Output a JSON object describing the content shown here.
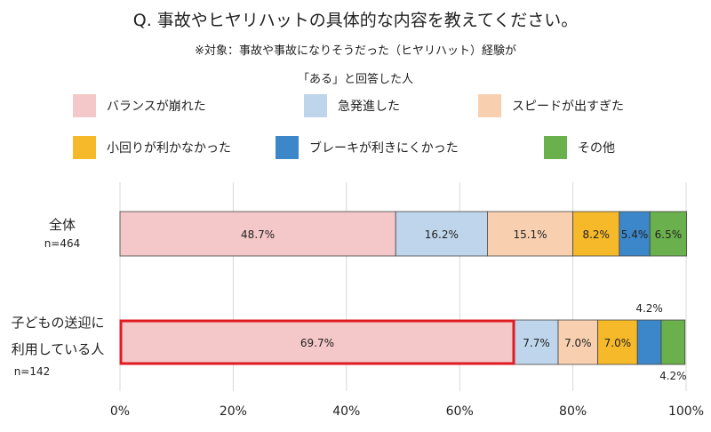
{
  "title": "Q. 事故やヒヤリハットの具体的な内容を教えてください。",
  "subtitle_line1": "※対象：事故や事故になりそうだった（ヒヤリハット）経験が",
  "subtitle_line2": "「ある」と回答した人",
  "chart_data": {
    "type": "bar",
    "orientation": "horizontal",
    "stacked": true,
    "xlim": [
      0,
      100
    ],
    "x_ticks": [
      "0%",
      "20%",
      "40%",
      "60%",
      "80%",
      "100%"
    ],
    "grid": true,
    "legend_position": "top",
    "categories": [
      {
        "label_lines": [
          "全体"
        ],
        "n": "n=464",
        "highlight_series": null
      },
      {
        "label_lines": [
          "子どもの送迎に",
          "利用している人"
        ],
        "n": "n=142",
        "highlight_series": 0
      }
    ],
    "series": [
      {
        "name": "バランスが崩れた",
        "color": "#f4c7c8",
        "values": [
          48.7,
          69.7
        ],
        "labels": [
          "48.7%",
          "69.7%"
        ]
      },
      {
        "name": "急発進した",
        "color": "#bed5ec",
        "values": [
          16.2,
          7.7
        ],
        "labels": [
          "16.2%",
          "7.7%"
        ]
      },
      {
        "name": "スピードが出すぎた",
        "color": "#f8d0b0",
        "values": [
          15.1,
          7.0
        ],
        "labels": [
          "15.1%",
          "7.0%"
        ]
      },
      {
        "name": "小回りが利かなかった",
        "color": "#f5b92a",
        "values": [
          8.2,
          7.0
        ],
        "labels": [
          "8.2%",
          "7.0%"
        ]
      },
      {
        "name": "ブレーキが利きにくかった",
        "color": "#3b87c9",
        "values": [
          5.4,
          4.2
        ],
        "labels": [
          "5.4%",
          "4.2%"
        ]
      },
      {
        "name": "その他",
        "color": "#6ab04c",
        "values": [
          6.5,
          4.2
        ],
        "labels": [
          "6.5%",
          "4.2%"
        ]
      }
    ],
    "highlight_color": "#e11b22"
  }
}
